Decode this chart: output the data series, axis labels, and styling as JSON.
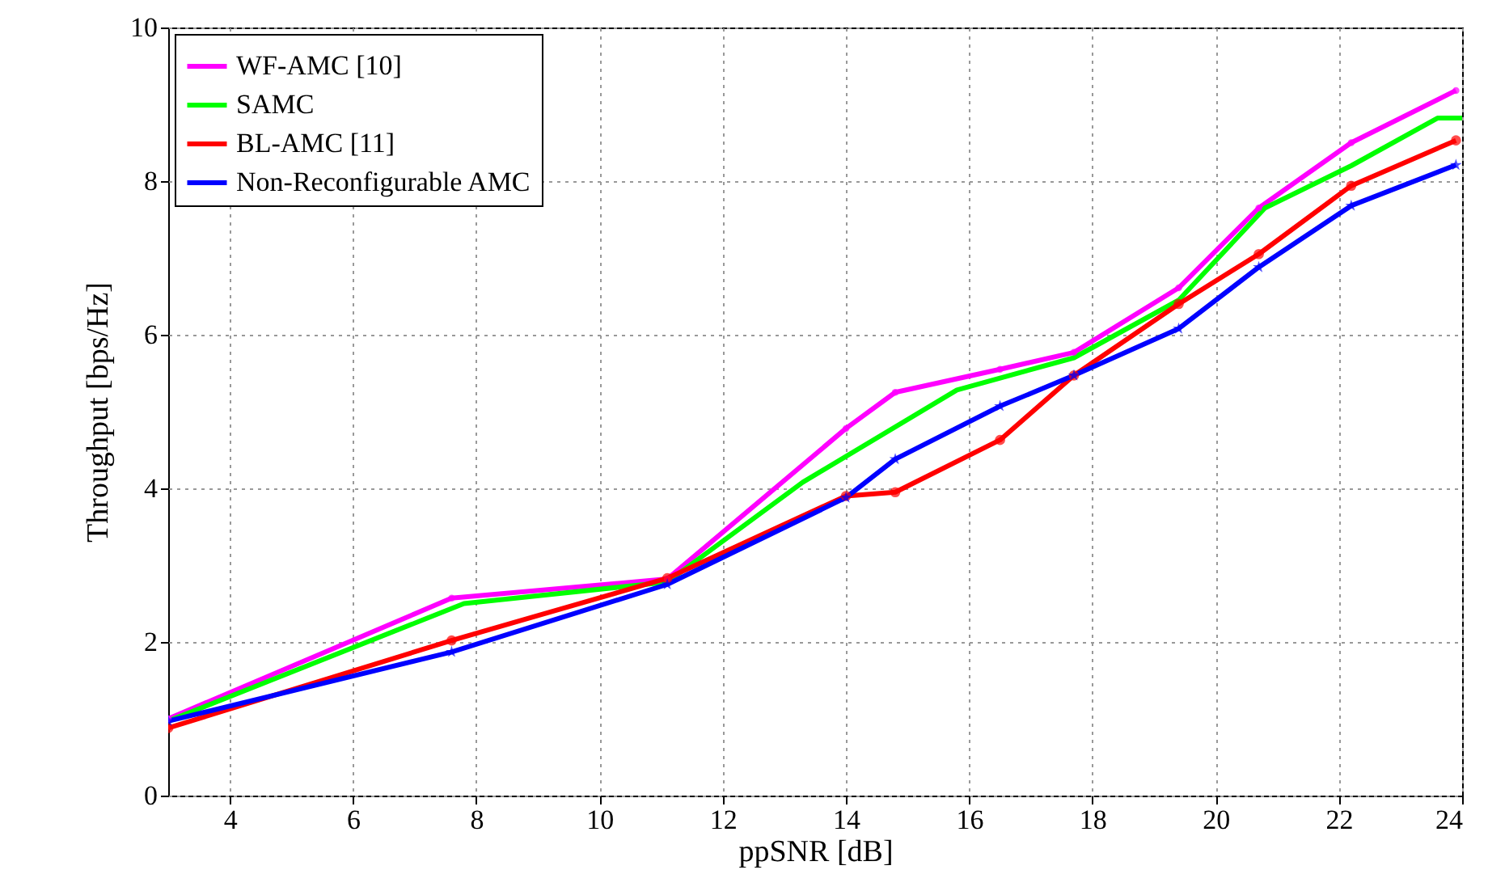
{
  "chart_data": {
    "type": "line",
    "xlabel": "ppSNR [dB]",
    "ylabel": "Throughput [bps/Hz]",
    "xlim": [
      3,
      24
    ],
    "xticks": [
      4,
      6,
      8,
      10,
      12,
      14,
      16,
      18,
      20,
      22,
      24
    ],
    "ylim": [
      0,
      10
    ],
    "yticks": [
      0,
      2,
      4,
      6,
      8,
      10
    ],
    "grid": true,
    "legend": "top left",
    "line_style": "solid",
    "series": [
      {
        "name": "WF-AMC [10]",
        "color": "#ff00ff",
        "marker": "circle",
        "x": [
          3,
          7.6,
          11.1,
          14,
          14.8,
          16.5,
          17.7,
          19.4,
          20.7,
          22.2,
          23.9
        ],
        "values": [
          1.0,
          2.57,
          2.82,
          4.78,
          5.25,
          5.55,
          5.77,
          6.61,
          7.65,
          8.5,
          9.18
        ]
      },
      {
        "name": "SAMC",
        "color": "#00ff00",
        "marker": "none",
        "x": [
          3,
          7.8,
          11.1,
          13.3,
          15.8,
          17.7,
          19.4,
          20.8,
          22.2,
          23.6,
          24
        ],
        "values": [
          0.97,
          2.5,
          2.78,
          4.08,
          5.28,
          5.7,
          6.45,
          7.65,
          8.2,
          8.82,
          8.82
        ]
      },
      {
        "name": "BL-AMC [11]",
        "color": "#ff0000",
        "marker": "circle",
        "x": [
          3,
          7.6,
          11.1,
          14,
          14.8,
          16.5,
          17.7,
          19.4,
          20.7,
          22.2,
          23.9
        ],
        "values": [
          0.88,
          2.02,
          2.83,
          3.9,
          3.95,
          4.63,
          5.47,
          6.4,
          7.05,
          7.94,
          8.53
        ]
      },
      {
        "name": "Non-Reconfigurable AMC",
        "color": "#0000ff",
        "marker": "star",
        "x": [
          3,
          7.6,
          11.1,
          14,
          14.8,
          16.5,
          17.7,
          19.4,
          20.7,
          22.2,
          23.9
        ],
        "values": [
          0.97,
          1.87,
          2.75,
          3.88,
          4.38,
          5.07,
          5.47,
          6.08,
          6.88,
          7.68,
          8.21
        ]
      }
    ]
  }
}
